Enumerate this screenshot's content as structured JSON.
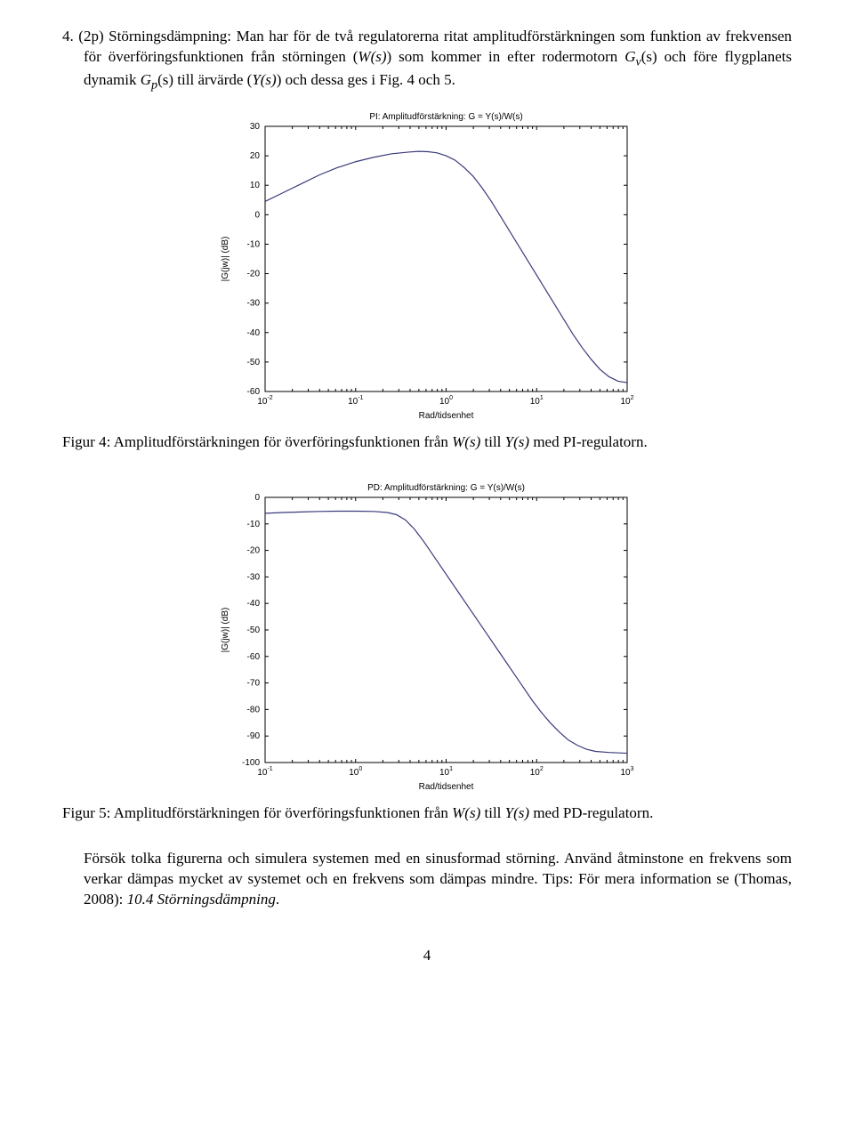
{
  "problem": {
    "number_label": "4.",
    "points_label": "(2p)",
    "heading": "Störningsdämpning:",
    "body_line1": "Man har för de två regulatorerna ritat amplitudförstärkningen som funktion av frekvensen för överföringsfunktionen från störningen (",
    "body_w": "W(s)",
    "body_line2": ") som kommer in efter rodermotorn ",
    "body_gv": "G",
    "body_gv_sub": "v",
    "body_line3": "(s) och före flygplanets dynamik ",
    "body_gp": "G",
    "body_gp_sub": "p",
    "body_line4": "(s) till ärvärde (",
    "body_y": "Y(s)",
    "body_line5": ") och dessa ges i Fig. 4 och 5."
  },
  "chart1": {
    "type": "line",
    "title": "PI: Amplitudförstärkning: G = Y(s)/W(s)",
    "xlabel": "Rad/tidsenhet",
    "ylabel": "|G(jw)| (dB)",
    "x_log_min": -2,
    "x_log_max": 2,
    "x_ticks_exp": [
      -2,
      -1,
      0,
      1,
      2
    ],
    "ytick_step": 10,
    "ylim": [
      -60,
      30
    ],
    "yticks": [
      30,
      20,
      10,
      0,
      -10,
      -20,
      -30,
      -40,
      -50,
      -60
    ],
    "bg_color": "#ffffff",
    "frame_color": "#000000",
    "line_color": "#3a3a7a",
    "title_fontsize": 10,
    "label_fontsize": 10,
    "points": [
      [
        -2.0,
        4.5
      ],
      [
        -1.8,
        7.5
      ],
      [
        -1.6,
        10.5
      ],
      [
        -1.4,
        13.5
      ],
      [
        -1.2,
        16.0
      ],
      [
        -1.0,
        18.0
      ],
      [
        -0.8,
        19.5
      ],
      [
        -0.6,
        20.7
      ],
      [
        -0.4,
        21.3
      ],
      [
        -0.3,
        21.5
      ],
      [
        -0.2,
        21.4
      ],
      [
        -0.1,
        21.0
      ],
      [
        0.0,
        20.0
      ],
      [
        0.1,
        18.5
      ],
      [
        0.2,
        16.0
      ],
      [
        0.3,
        13.0
      ],
      [
        0.4,
        9.0
      ],
      [
        0.5,
        4.5
      ],
      [
        0.6,
        -0.5
      ],
      [
        0.7,
        -5.5
      ],
      [
        0.8,
        -10.5
      ],
      [
        0.9,
        -15.5
      ],
      [
        1.0,
        -20.5
      ],
      [
        1.1,
        -25.5
      ],
      [
        1.2,
        -30.5
      ],
      [
        1.3,
        -35.5
      ],
      [
        1.4,
        -40.5
      ],
      [
        1.5,
        -45.0
      ],
      [
        1.6,
        -49.0
      ],
      [
        1.7,
        -52.5
      ],
      [
        1.8,
        -55.0
      ],
      [
        1.9,
        -56.5
      ],
      [
        2.0,
        -57.0
      ]
    ]
  },
  "caption1": {
    "prefix": "Figur 4: Amplitudförstärkningen för överföringsfunktionen från ",
    "w": "W(s)",
    "mid": " till ",
    "y": "Y(s)",
    "suffix": " med PI-regulatorn."
  },
  "chart2": {
    "type": "line",
    "title": "PD: Amplitudförstärkning: G = Y(s)/W(s)",
    "xlabel": "Rad/tidsenhet",
    "ylabel": "|G(jw)| (dB)",
    "x_log_min": -1,
    "x_log_max": 3,
    "x_ticks_exp": [
      -1,
      0,
      1,
      2,
      3
    ],
    "ytick_step": 10,
    "ylim": [
      -100,
      0
    ],
    "yticks": [
      0,
      -10,
      -20,
      -30,
      -40,
      -50,
      -60,
      -70,
      -80,
      -90,
      -100
    ],
    "bg_color": "#ffffff",
    "frame_color": "#000000",
    "line_color": "#3a3a7a",
    "title_fontsize": 10,
    "label_fontsize": 10,
    "points": [
      [
        -1.0,
        -6.0
      ],
      [
        -0.8,
        -5.7
      ],
      [
        -0.6,
        -5.5
      ],
      [
        -0.4,
        -5.3
      ],
      [
        -0.2,
        -5.2
      ],
      [
        0.0,
        -5.2
      ],
      [
        0.2,
        -5.3
      ],
      [
        0.35,
        -5.7
      ],
      [
        0.45,
        -6.5
      ],
      [
        0.55,
        -8.5
      ],
      [
        0.65,
        -12.0
      ],
      [
        0.75,
        -16.5
      ],
      [
        0.85,
        -21.5
      ],
      [
        0.95,
        -26.5
      ],
      [
        1.05,
        -31.5
      ],
      [
        1.15,
        -36.5
      ],
      [
        1.25,
        -41.5
      ],
      [
        1.35,
        -46.5
      ],
      [
        1.45,
        -51.5
      ],
      [
        1.55,
        -56.5
      ],
      [
        1.65,
        -61.5
      ],
      [
        1.75,
        -66.5
      ],
      [
        1.85,
        -71.5
      ],
      [
        1.95,
        -76.5
      ],
      [
        2.05,
        -81.0
      ],
      [
        2.15,
        -85.0
      ],
      [
        2.25,
        -88.5
      ],
      [
        2.35,
        -91.5
      ],
      [
        2.45,
        -93.5
      ],
      [
        2.55,
        -95.0
      ],
      [
        2.65,
        -95.8
      ],
      [
        2.8,
        -96.2
      ],
      [
        3.0,
        -96.5
      ]
    ]
  },
  "caption2": {
    "prefix": "Figur 5: Amplitudförstärkningen för överföringsfunktionen från ",
    "w": "W(s)",
    "mid": " till ",
    "y": "Y(s)",
    "suffix": " med PD-regulatorn."
  },
  "closing": {
    "line1": "Försök tolka figurerna och simulera systemen med en sinusformad störning. Använd åtminstone en frekvens som verkar dämpas mycket av systemet och en frekvens som dämpas mindre. Tips: För mera information se (Thomas, 2008): ",
    "ref": "10.4 Störningsdämpning",
    "line2": "."
  },
  "pagenum": "4"
}
